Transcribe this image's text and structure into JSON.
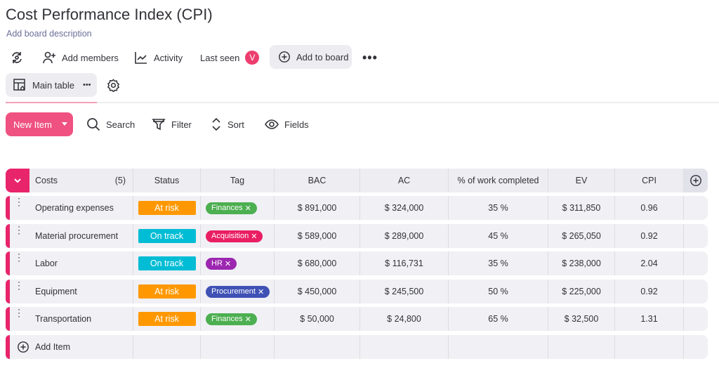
{
  "board": {
    "title": "Cost Performance Index (CPI)",
    "description": "Add board description"
  },
  "toolbar": {
    "add_members": "Add members",
    "activity": "Activity",
    "last_seen": "Last seen",
    "avatar_initial": "V",
    "add_to_board": "Add to board"
  },
  "view": {
    "main_table": "Main table"
  },
  "actions": {
    "new_item": "New Item",
    "search": "Search",
    "filter": "Filter",
    "sort": "Sort",
    "fields": "Fields"
  },
  "colors": {
    "accent": "#ef5181",
    "group": "#e8246a"
  },
  "table": {
    "group_name": "Costs",
    "count": "(5)",
    "headers": [
      "Status",
      "Tag",
      "BAC",
      "AC",
      "% of work completed",
      "EV",
      "CPI"
    ],
    "rows": [
      {
        "name": "Operating expenses",
        "status": "At risk",
        "status_color": "#ff9800",
        "tag": "Finances",
        "tag_color": "#4caf50",
        "bac": "$ 891,000",
        "ac": "$ 324,000",
        "pct": "35 %",
        "ev": "$ 311,850",
        "cpi": "0.96"
      },
      {
        "name": "Material procurement",
        "status": "On track",
        "status_color": "#00bcd4",
        "tag": "Acquisition",
        "tag_color": "#e91e63",
        "bac": "$ 589,000",
        "ac": "$ 289,000",
        "pct": "45 %",
        "ev": "$ 265,050",
        "cpi": "0.92"
      },
      {
        "name": "Labor",
        "status": "On track",
        "status_color": "#00bcd4",
        "tag": "HR",
        "tag_color": "#9c27b0",
        "bac": "$ 680,000",
        "ac": "$ 116,731",
        "pct": "35 %",
        "ev": "$ 238,000",
        "cpi": "2.04"
      },
      {
        "name": "Equipment",
        "status": "At risk",
        "status_color": "#ff9800",
        "tag": "Procurement",
        "tag_color": "#3f51b5",
        "bac": "$ 450,000",
        "ac": "$ 245,500",
        "pct": "50 %",
        "ev": "$ 225,000",
        "cpi": "0.92"
      },
      {
        "name": "Transportation",
        "status": "At risk",
        "status_color": "#ff9800",
        "tag": "Finances",
        "tag_color": "#4caf50",
        "bac": "$ 50,000",
        "ac": "$ 24,800",
        "pct": "65 %",
        "ev": "$ 32,500",
        "cpi": "1.31"
      }
    ],
    "add_item": "Add Item"
  }
}
